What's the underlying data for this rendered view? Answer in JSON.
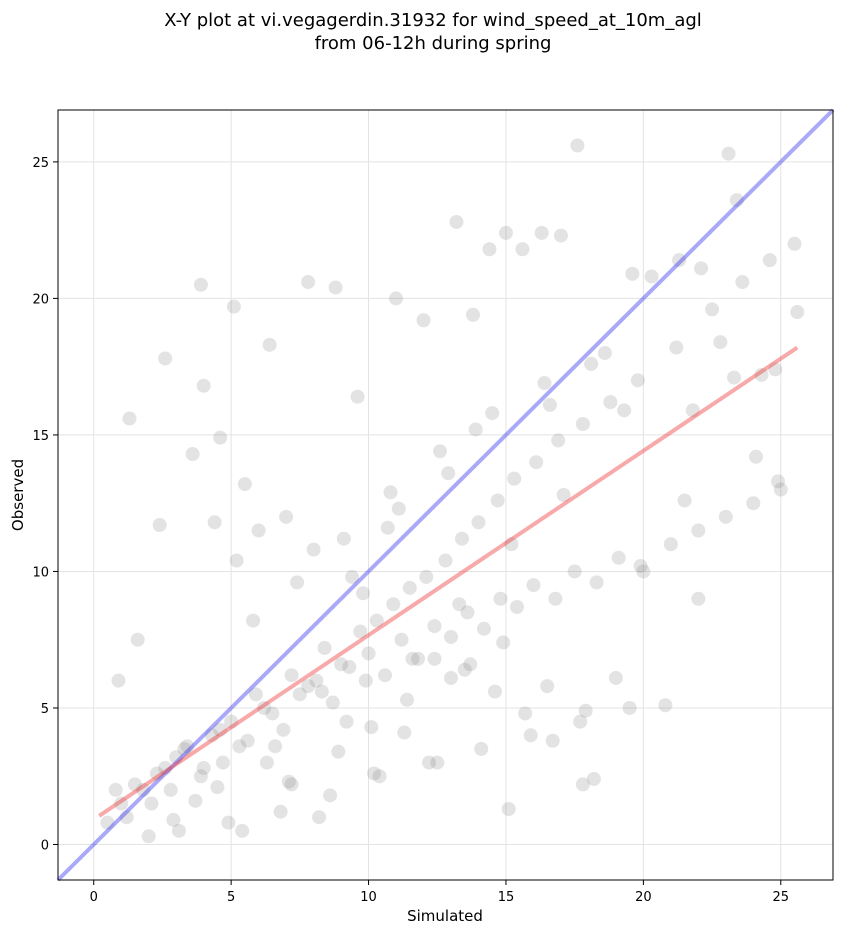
{
  "chart_data": {
    "type": "scatter",
    "title_lines": [
      "X-Y plot at vi.vegagerdin.31932 for wind_speed_at_10m_agl",
      "from 06-12h during spring"
    ],
    "xlabel": "Simulated",
    "ylabel": "Observed",
    "xlim": [
      -1.3,
      26.9
    ],
    "ylim": [
      -1.3,
      26.9
    ],
    "xticks": [
      0,
      5,
      10,
      15,
      20,
      25
    ],
    "yticks": [
      0,
      5,
      10,
      15,
      20,
      25
    ],
    "grid": true,
    "point_color": "#808080",
    "identity_line": {
      "x": [
        -1.3,
        26.9
      ],
      "y": [
        -1.3,
        26.9
      ],
      "color": "#3333ee"
    },
    "fit_line": {
      "x": [
        0.2,
        25.6
      ],
      "y": [
        1.05,
        18.2
      ],
      "color": "#ee3333"
    },
    "points_x": [
      1.2,
      1.8,
      2.1,
      2.6,
      3.0,
      3.4,
      3.9,
      4.3,
      4.7,
      5.0,
      5.6,
      6.2,
      6.9,
      7.5,
      8.1,
      8.7,
      9.3,
      10.0,
      10.6,
      11.2,
      11.8,
      12.4,
      13.0,
      13.6,
      14.2,
      14.8,
      15.4,
      16.0,
      16.8,
      17.5,
      18.3,
      19.1,
      20.0,
      21.0,
      22.0,
      23.0,
      24.0,
      25.0,
      0.5,
      1.0,
      1.5,
      2.3,
      2.8,
      3.3,
      4.0,
      4.6,
      5.3,
      5.9,
      6.5,
      7.2,
      7.8,
      8.4,
      9.0,
      9.7,
      10.3,
      10.9,
      11.5,
      12.1,
      12.8,
      13.4,
      14.0,
      14.7,
      15.3,
      16.1,
      16.9,
      17.8,
      18.8,
      19.8,
      21.2,
      22.5,
      23.6,
      24.6,
      25.5,
      1.3,
      2.6,
      4.0,
      3.9,
      4.6,
      5.1,
      5.5,
      6.4,
      7.8,
      8.8,
      9.6,
      11.0,
      12.0,
      13.2,
      13.8,
      14.4,
      15.0,
      15.6,
      16.3,
      17.0,
      17.6,
      18.6,
      19.6,
      20.3,
      21.3,
      22.1,
      23.1,
      23.4,
      24.1,
      24.9,
      25.6,
      20.8,
      22.0,
      15.1,
      17.8,
      18.2,
      19.0,
      21.5,
      13.7,
      12.4,
      16.5,
      9.8,
      8.0,
      7.0,
      6.0,
      5.2,
      4.4,
      3.6,
      2.4,
      1.6,
      0.9,
      3.1,
      4.9,
      6.8,
      8.6,
      10.4,
      12.2,
      14.1,
      15.9,
      17.7,
      19.5,
      5.8,
      7.4,
      9.1,
      10.8,
      12.6,
      14.5,
      16.4,
      18.1,
      6.6,
      8.3,
      9.9,
      11.6,
      13.3,
      15.2,
      17.1,
      7.1,
      8.9,
      10.1,
      11.4,
      13.0,
      14.9,
      9.4,
      10.7,
      12.9,
      11.1,
      13.9,
      16.6,
      19.3,
      22.8,
      24.3,
      0.8,
      2.0,
      2.9,
      3.7,
      4.5,
      5.4,
      6.3,
      7.2,
      8.2,
      9.2,
      10.2,
      11.3,
      12.5,
      13.5,
      14.6,
      15.7,
      16.7,
      17.9,
      19.9,
      21.8,
      23.3,
      24.8
    ],
    "points_y": [
      1.0,
      2.0,
      1.5,
      2.8,
      3.2,
      3.6,
      2.5,
      4.0,
      3.0,
      4.5,
      3.8,
      5.0,
      4.2,
      5.5,
      6.0,
      5.2,
      6.5,
      7.0,
      6.2,
      7.5,
      6.8,
      8.0,
      7.6,
      8.5,
      7.9,
      9.0,
      8.7,
      9.5,
      9.0,
      10.0,
      9.6,
      10.5,
      10.0,
      11.0,
      11.5,
      12.0,
      12.5,
      13.0,
      0.8,
      1.5,
      2.2,
      2.6,
      2.0,
      3.5,
      2.8,
      4.2,
      3.6,
      5.5,
      4.8,
      6.2,
      5.8,
      7.2,
      6.6,
      7.8,
      8.2,
      8.8,
      9.4,
      9.8,
      10.4,
      11.2,
      11.8,
      12.6,
      13.4,
      14.0,
      14.8,
      15.4,
      16.2,
      17.0,
      18.2,
      19.6,
      20.6,
      21.4,
      22.0,
      15.6,
      17.8,
      16.8,
      20.5,
      14.9,
      19.7,
      13.2,
      18.3,
      20.6,
      20.4,
      16.4,
      20.0,
      19.2,
      22.8,
      19.4,
      21.8,
      22.4,
      21.8,
      22.4,
      22.3,
      25.6,
      18.0,
      20.9,
      20.8,
      21.4,
      21.1,
      25.3,
      23.6,
      14.2,
      13.3,
      19.5,
      5.1,
      9.0,
      1.3,
      2.2,
      2.4,
      6.1,
      12.6,
      6.6,
      6.8,
      5.8,
      9.2,
      10.8,
      12.0,
      11.5,
      10.4,
      11.8,
      14.3,
      11.7,
      7.5,
      6.0,
      0.5,
      0.8,
      1.2,
      1.8,
      2.5,
      3.0,
      3.5,
      4.0,
      4.5,
      5.0,
      8.2,
      9.6,
      11.2,
      12.9,
      14.4,
      15.8,
      16.9,
      17.6,
      3.6,
      5.6,
      6.0,
      6.8,
      8.8,
      11.0,
      12.8,
      2.3,
      3.4,
      4.3,
      5.3,
      6.1,
      7.4,
      9.8,
      11.6,
      13.6,
      12.3,
      15.2,
      16.1,
      15.9,
      18.4,
      17.2,
      2.0,
      0.3,
      0.9,
      1.6,
      2.1,
      0.5,
      3.0,
      2.2,
      1.0,
      4.5,
      2.6,
      4.1,
      3.0,
      6.4,
      5.6,
      4.8,
      3.8,
      4.9,
      10.2,
      15.9,
      17.1,
      17.4
    ]
  }
}
